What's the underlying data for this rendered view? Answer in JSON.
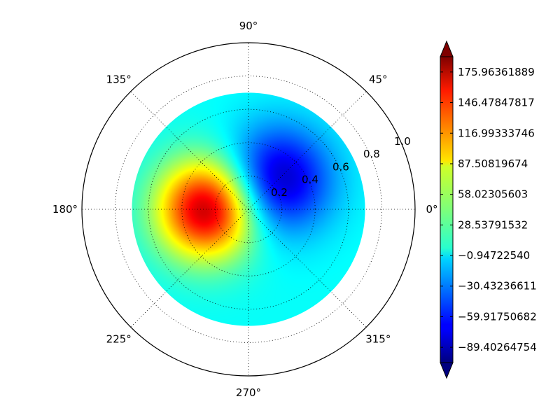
{
  "chart_data": {
    "type": "heatmap",
    "projection": "polar",
    "colormap": "jet",
    "grid": true,
    "angle_ticks": [
      "0°",
      "45°",
      "90°",
      "135°",
      "180°",
      "225°",
      "270°",
      "315°"
    ],
    "radius_ticks": [
      "0.2",
      "0.4",
      "0.6",
      "0.8",
      "1.0"
    ],
    "r_range": [
      0,
      1.0
    ],
    "data_radius": 0.7,
    "extrema": [
      {
        "type": "max",
        "r": 0.25,
        "theta_deg": 180,
        "value": 175.96
      },
      {
        "type": "min",
        "r": 0.25,
        "theta_deg": 45,
        "value": -89.4
      }
    ],
    "colorbar": {
      "extend": "both",
      "placement": "right",
      "tick_labels": [
        "175.96361889",
        "146.47847817",
        "116.99333746",
        "87.50819674",
        "58.02305603",
        "28.53791532",
        "−0.94722540",
        "−30.43236611",
        "−59.91750682",
        "−89.40264754"
      ],
      "tick_values": [
        175.96361889,
        146.47847817,
        116.99333746,
        87.50819674,
        58.02305603,
        28.53791532,
        -0.9472254,
        -30.43236611,
        -59.91750682,
        -89.40264754
      ],
      "range": [
        -104.15,
        190.71
      ]
    }
  }
}
